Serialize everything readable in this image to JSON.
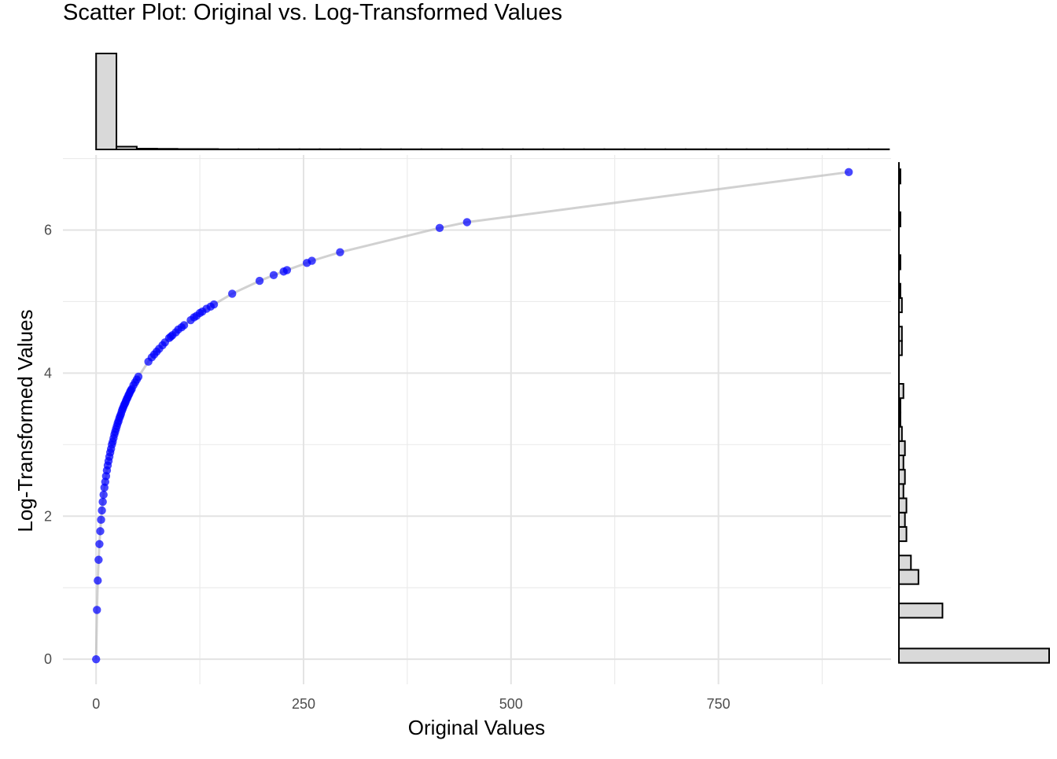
{
  "chart_data": {
    "type": "scatter",
    "title": "Scatter Plot: Original vs. Log-Transformed Values",
    "xlabel": "Original Values",
    "ylabel": "Log-Transformed Values",
    "xlim": [
      -40,
      958
    ],
    "ylim": [
      -0.35,
      7.05
    ],
    "x_ticks": [
      {
        "value": 0,
        "label": "0"
      },
      {
        "value": 250,
        "label": "250"
      },
      {
        "value": 500,
        "label": "500"
      },
      {
        "value": 750,
        "label": "750"
      }
    ],
    "y_ticks": [
      {
        "value": 0,
        "label": "0"
      },
      {
        "value": 2,
        "label": "2"
      },
      {
        "value": 4,
        "label": "4"
      },
      {
        "value": 6,
        "label": "6"
      }
    ],
    "grid": true,
    "point_color": "#0000ff",
    "line_color": "#bebebe",
    "hist_fill": "#d9d9d9",
    "hist_stroke": "#000000",
    "series": [
      {
        "style": "points-with-line",
        "x": [
          0,
          1,
          2,
          3,
          4,
          5,
          6,
          7,
          8,
          9,
          10,
          11,
          12,
          13,
          14,
          15,
          16,
          17,
          18,
          19,
          20,
          21,
          22,
          23,
          24,
          25,
          26,
          27,
          28,
          29,
          30,
          31,
          32,
          33,
          34,
          35,
          36,
          37,
          38,
          39,
          40,
          41,
          42,
          43,
          45,
          47,
          49,
          51,
          63,
          67,
          70,
          73,
          76,
          80,
          83,
          88,
          90,
          92,
          96,
          99,
          103,
          106,
          114,
          118,
          121,
          125,
          128,
          133,
          138,
          142,
          164,
          197,
          214,
          226,
          230,
          254,
          260,
          294,
          414,
          447,
          907
        ],
        "y": [
          0,
          0.69,
          1.1,
          1.39,
          1.61,
          1.79,
          1.95,
          2.08,
          2.2,
          2.3,
          2.4,
          2.48,
          2.56,
          2.64,
          2.71,
          2.77,
          2.83,
          2.89,
          2.94,
          3.0,
          3.04,
          3.09,
          3.14,
          3.18,
          3.22,
          3.26,
          3.3,
          3.33,
          3.37,
          3.4,
          3.43,
          3.47,
          3.5,
          3.53,
          3.56,
          3.58,
          3.61,
          3.64,
          3.66,
          3.69,
          3.71,
          3.74,
          3.76,
          3.78,
          3.83,
          3.87,
          3.91,
          3.95,
          4.16,
          4.22,
          4.26,
          4.3,
          4.34,
          4.39,
          4.43,
          4.49,
          4.51,
          4.53,
          4.57,
          4.61,
          4.64,
          4.67,
          4.74,
          4.78,
          4.8,
          4.84,
          4.86,
          4.9,
          4.93,
          4.96,
          5.11,
          5.29,
          5.37,
          5.42,
          5.44,
          5.54,
          5.57,
          5.69,
          6.03,
          6.11,
          6.81
        ]
      }
    ],
    "x_histogram": {
      "bin_width": 24.5,
      "counts": [
        480,
        14,
        4,
        3,
        2,
        2,
        1,
        1,
        1,
        1,
        1,
        1,
        1,
        1,
        1,
        1,
        1,
        1,
        1,
        1,
        1,
        1,
        1,
        1,
        1,
        1,
        1,
        1,
        1,
        1,
        1,
        1,
        1,
        1,
        1,
        1,
        1,
        1,
        1
      ]
    },
    "y_histogram": {
      "bins": [
        {
          "from": -0.05,
          "to": 0.15,
          "count": 100
        },
        {
          "from": 0.58,
          "to": 0.78,
          "count": 29
        },
        {
          "from": 1.05,
          "to": 1.25,
          "count": 13
        },
        {
          "from": 1.25,
          "to": 1.45,
          "count": 8
        },
        {
          "from": 1.65,
          "to": 1.85,
          "count": 5
        },
        {
          "from": 1.85,
          "to": 2.05,
          "count": 4
        },
        {
          "from": 2.05,
          "to": 2.25,
          "count": 5
        },
        {
          "from": 2.25,
          "to": 2.45,
          "count": 3
        },
        {
          "from": 2.45,
          "to": 2.65,
          "count": 4
        },
        {
          "from": 2.65,
          "to": 2.85,
          "count": 3
        },
        {
          "from": 2.85,
          "to": 3.05,
          "count": 4
        },
        {
          "from": 3.05,
          "to": 3.25,
          "count": 2
        },
        {
          "from": 3.25,
          "to": 3.45,
          "count": 1
        },
        {
          "from": 3.45,
          "to": 3.65,
          "count": 1
        },
        {
          "from": 3.65,
          "to": 3.85,
          "count": 3
        },
        {
          "from": 4.25,
          "to": 4.45,
          "count": 2
        },
        {
          "from": 4.45,
          "to": 4.65,
          "count": 2
        },
        {
          "from": 4.85,
          "to": 5.05,
          "count": 2
        },
        {
          "from": 5.05,
          "to": 5.25,
          "count": 1
        },
        {
          "from": 5.45,
          "to": 5.65,
          "count": 1
        },
        {
          "from": 6.05,
          "to": 6.25,
          "count": 1
        },
        {
          "from": 6.65,
          "to": 6.85,
          "count": 1
        }
      ]
    }
  }
}
